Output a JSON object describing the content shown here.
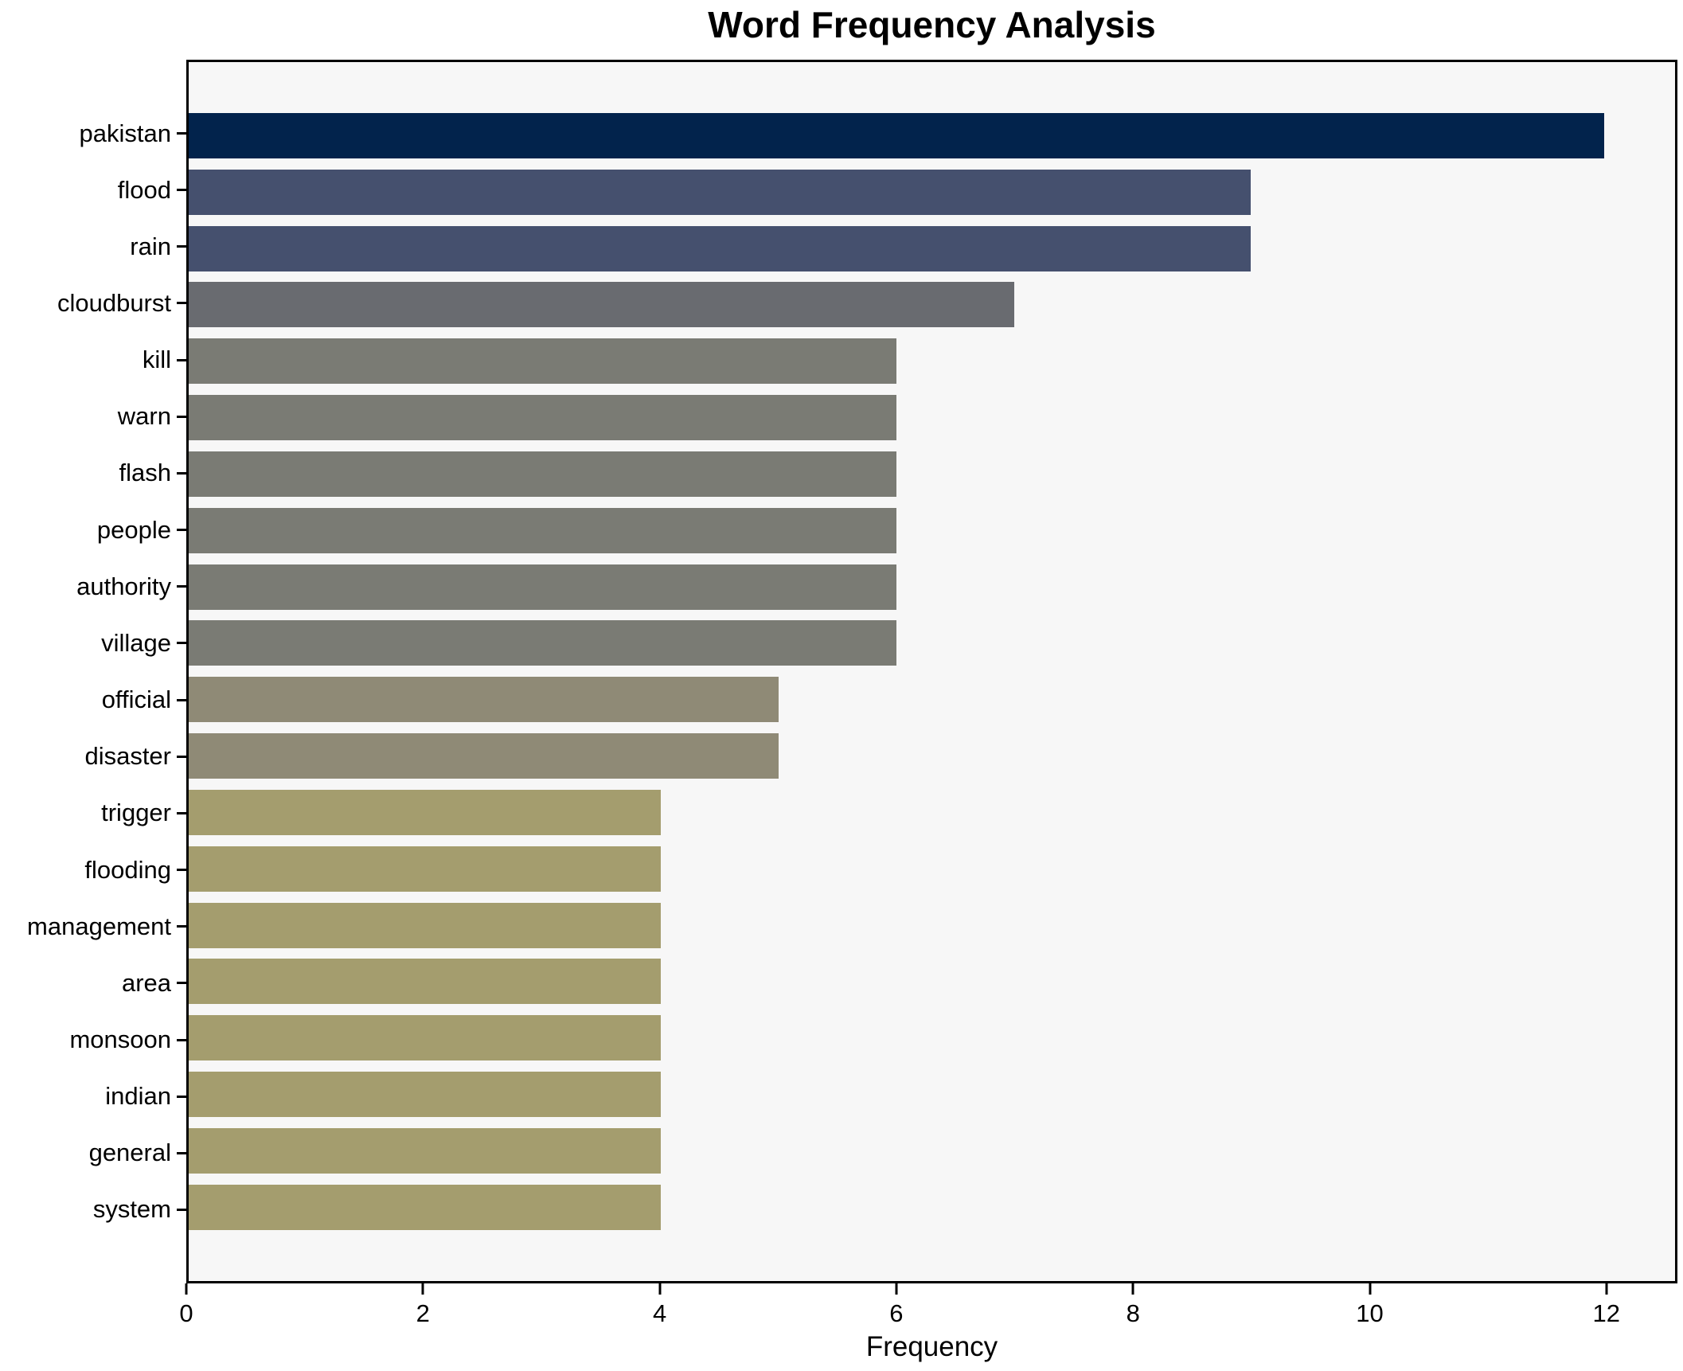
{
  "chart_data": {
    "type": "bar",
    "orientation": "horizontal",
    "title": "Word Frequency Analysis",
    "xlabel": "Frequency",
    "ylabel": "",
    "categories": [
      "pakistan",
      "flood",
      "rain",
      "cloudburst",
      "kill",
      "warn",
      "flash",
      "people",
      "authority",
      "village",
      "official",
      "disaster",
      "trigger",
      "flooding",
      "management",
      "area",
      "monsoon",
      "indian",
      "general",
      "system"
    ],
    "values": [
      12,
      9,
      9,
      7,
      6,
      6,
      6,
      6,
      6,
      6,
      5,
      5,
      4,
      4,
      4,
      4,
      4,
      4,
      4,
      4
    ],
    "bar_colors": [
      "#02234c",
      "#45506e",
      "#45506e",
      "#696b70",
      "#7a7b74",
      "#7a7b74",
      "#7a7b74",
      "#7a7b74",
      "#7a7b74",
      "#7a7b74",
      "#8f8a76",
      "#8f8a76",
      "#a49d6e",
      "#a49d6e",
      "#a49d6e",
      "#a49d6e",
      "#a49d6e",
      "#a49d6e",
      "#a49d6e",
      "#a49d6e"
    ],
    "xticks": [
      0,
      2,
      4,
      6,
      8,
      10,
      12
    ],
    "xlim": [
      0,
      12.6
    ],
    "grid": false,
    "legend_position": "none",
    "plot_background": "#f7f7f7",
    "figure_background": "#ffffff",
    "spine_color": "#000000"
  }
}
